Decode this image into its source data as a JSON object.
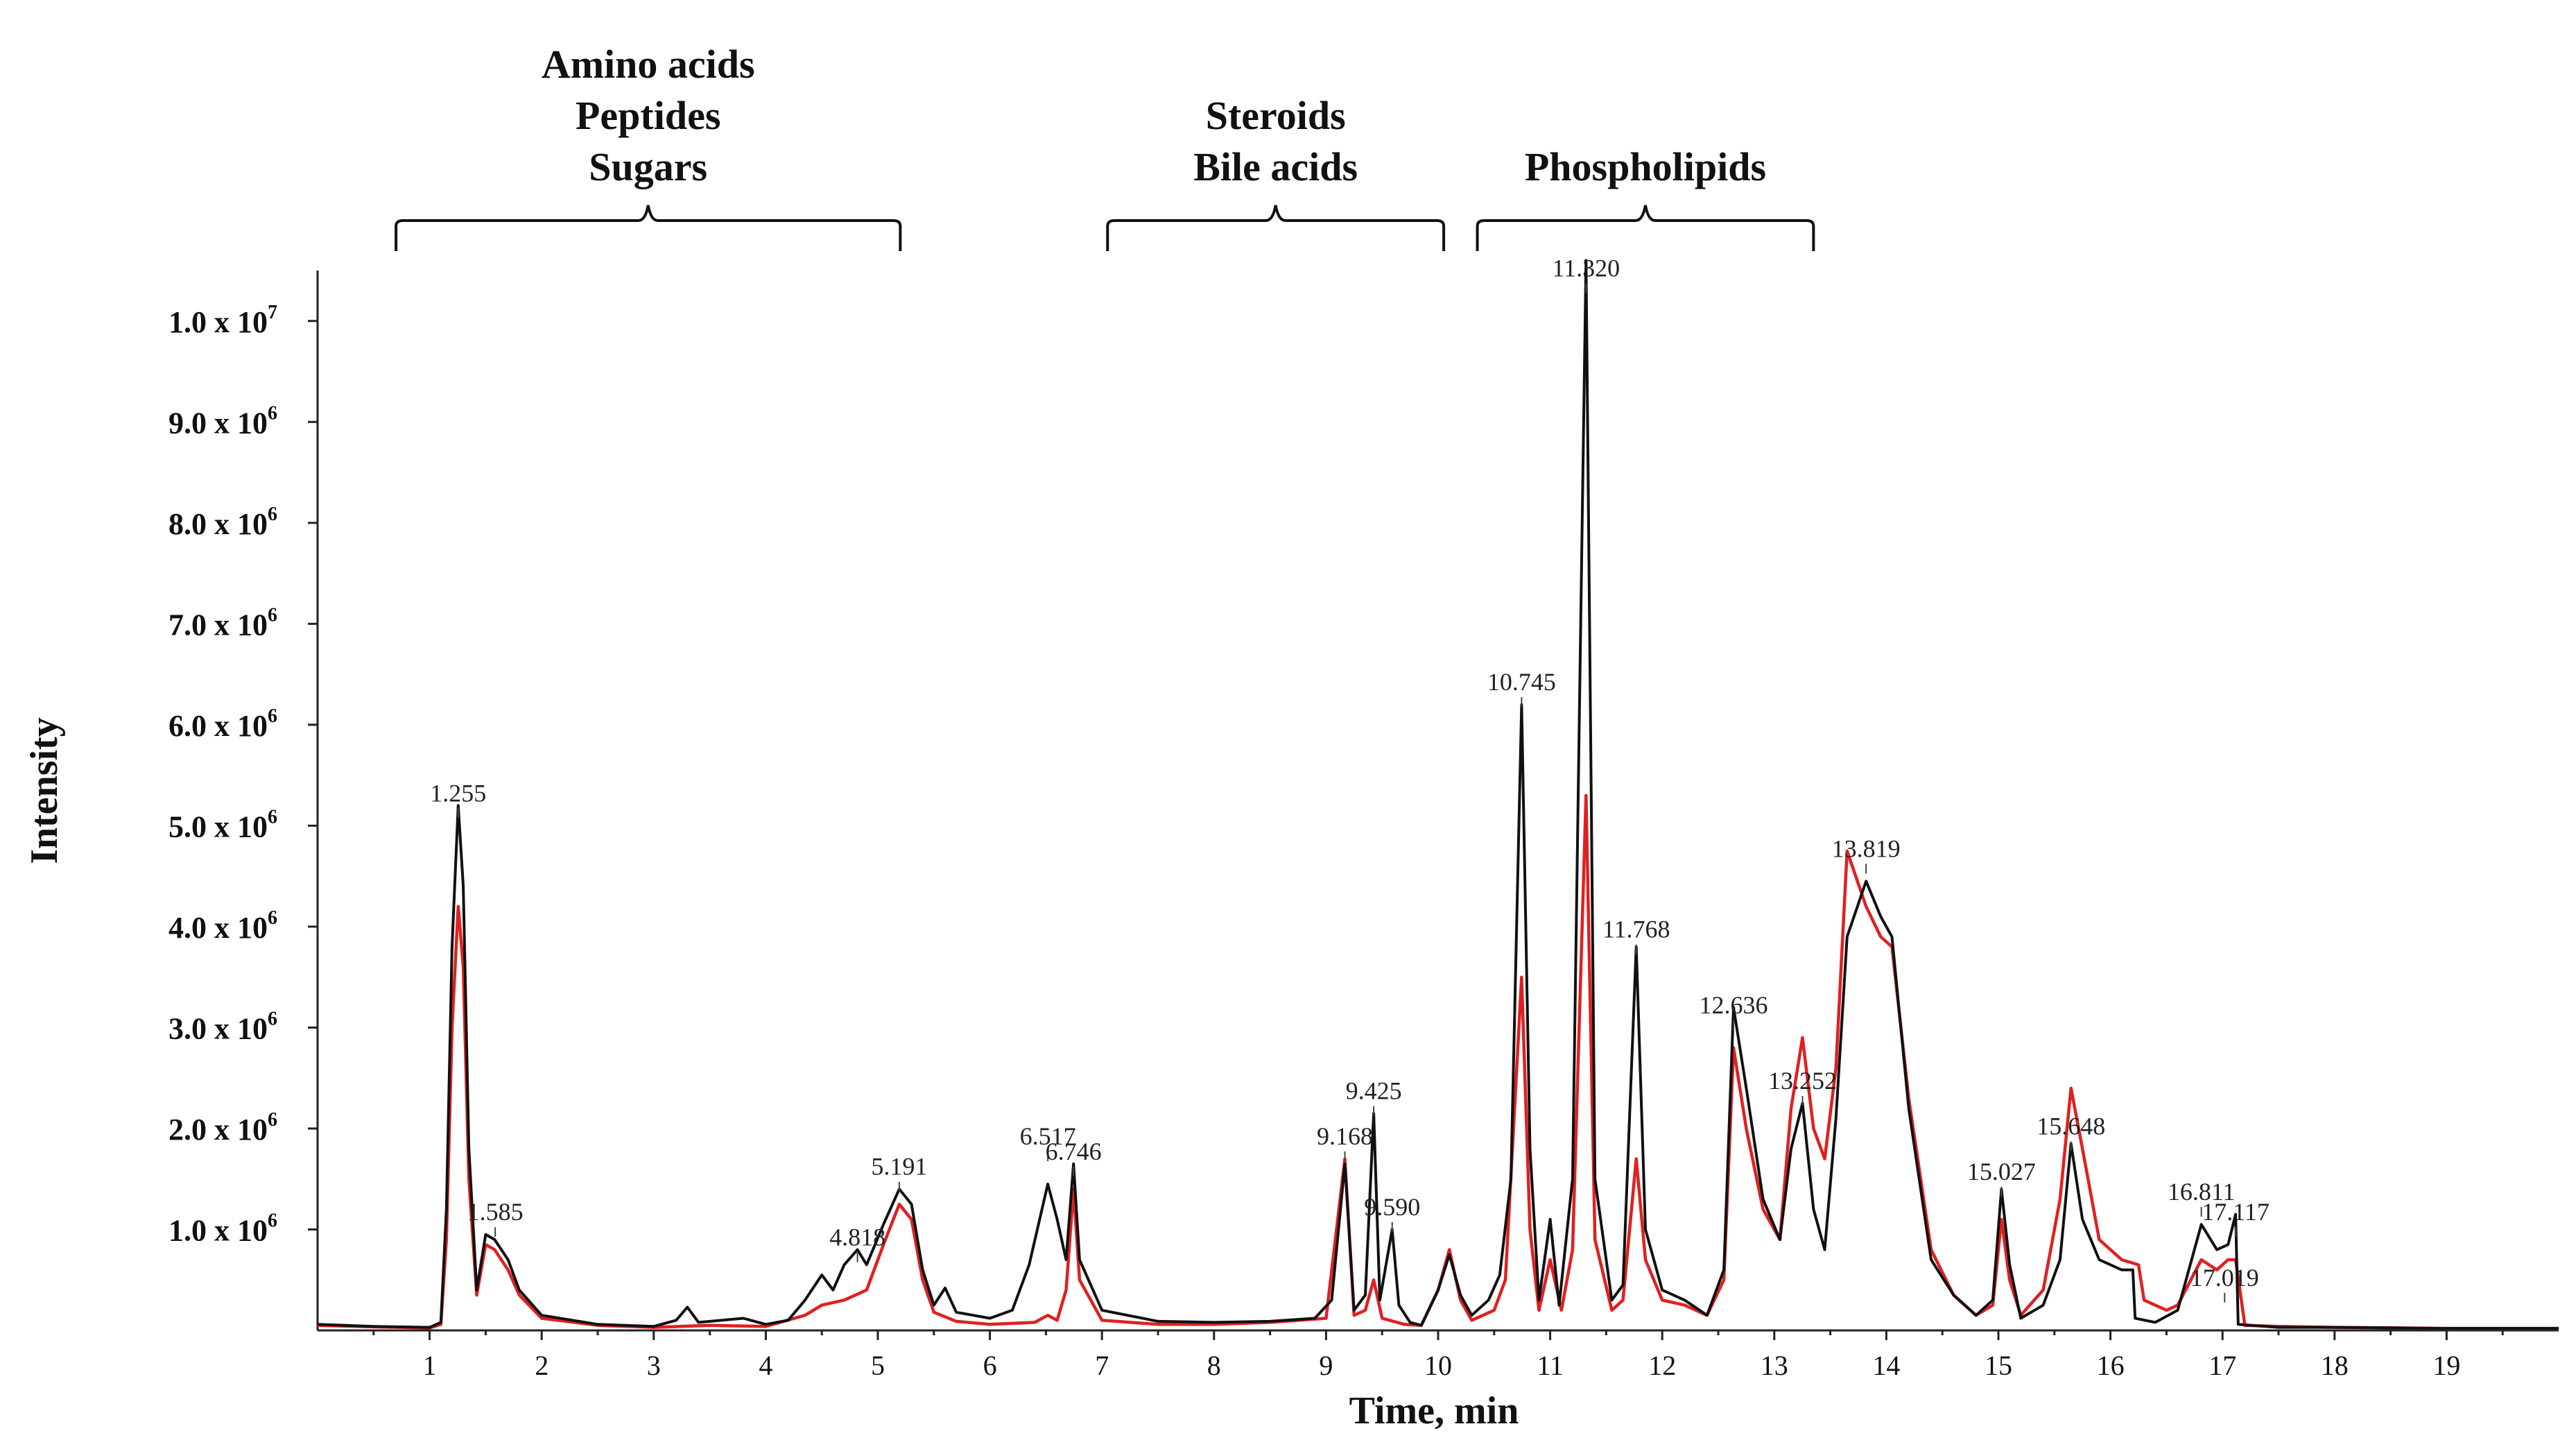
{
  "chart_data": {
    "type": "line",
    "title": "",
    "xlabel": "Time, min",
    "ylabel": "Intensity",
    "xlim": [
      0,
      20
    ],
    "ylim": [
      0,
      10500000
    ],
    "x_ticks": [
      1,
      2,
      3,
      4,
      5,
      6,
      7,
      8,
      9,
      10,
      11,
      12,
      13,
      14,
      15,
      16,
      17,
      18,
      19
    ],
    "y_ticks": [
      {
        "value": 1000000,
        "mantissa": "1.0",
        "exp": "6"
      },
      {
        "value": 2000000,
        "mantissa": "2.0",
        "exp": "6"
      },
      {
        "value": 3000000,
        "mantissa": "3.0",
        "exp": "6"
      },
      {
        "value": 4000000,
        "mantissa": "4.0",
        "exp": "6"
      },
      {
        "value": 5000000,
        "mantissa": "5.0",
        "exp": "6"
      },
      {
        "value": 6000000,
        "mantissa": "6.0",
        "exp": "6"
      },
      {
        "value": 7000000,
        "mantissa": "7.0",
        "exp": "6"
      },
      {
        "value": 8000000,
        "mantissa": "8.0",
        "exp": "6"
      },
      {
        "value": 9000000,
        "mantissa": "9.0",
        "exp": "6"
      },
      {
        "value": 10000000,
        "mantissa": "1.0",
        "exp": "7"
      }
    ],
    "groups": [
      {
        "labels": [
          "Amino acids",
          "Peptides",
          "Sugars"
        ],
        "range": [
          0.7,
          5.2
        ]
      },
      {
        "labels": [
          "Steroids",
          "Bile acids"
        ],
        "range": [
          7.05,
          10.05
        ]
      },
      {
        "labels": [
          "Phospholipids"
        ],
        "range": [
          10.35,
          13.35
        ]
      }
    ],
    "peak_labels": [
      {
        "text": "1.255",
        "x": 1.255,
        "y": 5200000
      },
      {
        "text": "1.585",
        "x": 1.585,
        "y": 1050000
      },
      {
        "text": "4.818",
        "x": 4.818,
        "y": 800000
      },
      {
        "text": "5.191",
        "x": 5.191,
        "y": 1500000
      },
      {
        "text": "6.517",
        "x": 6.517,
        "y": 1800000
      },
      {
        "text": "6.746",
        "x": 6.746,
        "y": 1650000
      },
      {
        "text": "9.168",
        "x": 9.168,
        "y": 1800000
      },
      {
        "text": "9.425",
        "x": 9.425,
        "y": 2250000
      },
      {
        "text": "9.590",
        "x": 9.59,
        "y": 1100000
      },
      {
        "text": "10.745",
        "x": 10.745,
        "y": 6300000
      },
      {
        "text": "11.320",
        "x": 11.32,
        "y": 10400000
      },
      {
        "text": "11.768",
        "x": 11.768,
        "y": 3850000
      },
      {
        "text": "12.636",
        "x": 12.636,
        "y": 3100000
      },
      {
        "text": "13.252",
        "x": 13.252,
        "y": 2350000
      },
      {
        "text": "13.819",
        "x": 13.819,
        "y": 4650000
      },
      {
        "text": "15.027",
        "x": 15.027,
        "y": 1450000
      },
      {
        "text": "15.648",
        "x": 15.648,
        "y": 1900000
      },
      {
        "text": "16.811",
        "x": 16.811,
        "y": 1250000
      },
      {
        "text": "17.117",
        "x": 17.117,
        "y": 1050000
      },
      {
        "text": "17.019",
        "x": 17.019,
        "y": 400000
      }
    ],
    "series": [
      {
        "name": "black trace",
        "color": "#111111",
        "points": [
          [
            0,
            60000
          ],
          [
            0.5,
            40000
          ],
          [
            1.0,
            30000
          ],
          [
            1.1,
            80000
          ],
          [
            1.15,
            1200000
          ],
          [
            1.2,
            3800000
          ],
          [
            1.255,
            5200000
          ],
          [
            1.3,
            4400000
          ],
          [
            1.35,
            1800000
          ],
          [
            1.42,
            400000
          ],
          [
            1.5,
            950000
          ],
          [
            1.58,
            900000
          ],
          [
            1.7,
            700000
          ],
          [
            1.8,
            400000
          ],
          [
            2.0,
            150000
          ],
          [
            2.5,
            60000
          ],
          [
            3.0,
            40000
          ],
          [
            3.2,
            100000
          ],
          [
            3.3,
            230000
          ],
          [
            3.4,
            80000
          ],
          [
            3.8,
            120000
          ],
          [
            4.0,
            60000
          ],
          [
            4.2,
            100000
          ],
          [
            4.35,
            300000
          ],
          [
            4.5,
            550000
          ],
          [
            4.6,
            400000
          ],
          [
            4.7,
            650000
          ],
          [
            4.818,
            800000
          ],
          [
            4.9,
            650000
          ],
          [
            5.05,
            1050000
          ],
          [
            5.191,
            1400000
          ],
          [
            5.3,
            1250000
          ],
          [
            5.4,
            600000
          ],
          [
            5.5,
            250000
          ],
          [
            5.6,
            420000
          ],
          [
            5.7,
            180000
          ],
          [
            6.0,
            120000
          ],
          [
            6.2,
            200000
          ],
          [
            6.35,
            650000
          ],
          [
            6.517,
            1450000
          ],
          [
            6.6,
            1100000
          ],
          [
            6.68,
            700000
          ],
          [
            6.746,
            1650000
          ],
          [
            6.8,
            700000
          ],
          [
            7.0,
            200000
          ],
          [
            7.5,
            90000
          ],
          [
            8.0,
            80000
          ],
          [
            8.5,
            90000
          ],
          [
            8.9,
            120000
          ],
          [
            9.05,
            300000
          ],
          [
            9.168,
            1650000
          ],
          [
            9.25,
            200000
          ],
          [
            9.35,
            350000
          ],
          [
            9.425,
            2150000
          ],
          [
            9.48,
            300000
          ],
          [
            9.59,
            1000000
          ],
          [
            9.65,
            250000
          ],
          [
            9.75,
            80000
          ],
          [
            9.85,
            50000
          ],
          [
            10.0,
            400000
          ],
          [
            10.1,
            750000
          ],
          [
            10.2,
            350000
          ],
          [
            10.3,
            150000
          ],
          [
            10.45,
            300000
          ],
          [
            10.55,
            550000
          ],
          [
            10.65,
            1500000
          ],
          [
            10.745,
            6200000
          ],
          [
            10.82,
            1800000
          ],
          [
            10.9,
            300000
          ],
          [
            11.0,
            1100000
          ],
          [
            11.08,
            250000
          ],
          [
            11.2,
            1500000
          ],
          [
            11.32,
            10600000
          ],
          [
            11.4,
            1500000
          ],
          [
            11.55,
            300000
          ],
          [
            11.65,
            450000
          ],
          [
            11.768,
            3800000
          ],
          [
            11.85,
            1000000
          ],
          [
            12.0,
            400000
          ],
          [
            12.2,
            300000
          ],
          [
            12.4,
            150000
          ],
          [
            12.55,
            600000
          ],
          [
            12.636,
            3200000
          ],
          [
            12.75,
            2400000
          ],
          [
            12.9,
            1300000
          ],
          [
            13.05,
            900000
          ],
          [
            13.15,
            1800000
          ],
          [
            13.252,
            2250000
          ],
          [
            13.35,
            1200000
          ],
          [
            13.45,
            800000
          ],
          [
            13.55,
            2100000
          ],
          [
            13.65,
            3900000
          ],
          [
            13.819,
            4450000
          ],
          [
            13.95,
            4100000
          ],
          [
            14.05,
            3900000
          ],
          [
            14.2,
            2200000
          ],
          [
            14.4,
            700000
          ],
          [
            14.6,
            350000
          ],
          [
            14.8,
            150000
          ],
          [
            14.95,
            300000
          ],
          [
            15.027,
            1400000
          ],
          [
            15.1,
            650000
          ],
          [
            15.2,
            120000
          ],
          [
            15.4,
            250000
          ],
          [
            15.55,
            700000
          ],
          [
            15.648,
            1850000
          ],
          [
            15.75,
            1100000
          ],
          [
            15.9,
            700000
          ],
          [
            16.1,
            600000
          ],
          [
            16.2,
            600000
          ],
          [
            16.22,
            120000
          ],
          [
            16.4,
            80000
          ],
          [
            16.6,
            200000
          ],
          [
            16.811,
            1050000
          ],
          [
            16.95,
            800000
          ],
          [
            17.05,
            850000
          ],
          [
            17.117,
            1150000
          ],
          [
            17.14,
            60000
          ],
          [
            17.5,
            30000
          ],
          [
            18.0,
            30000
          ],
          [
            19.0,
            20000
          ],
          [
            20.0,
            20000
          ]
        ]
      },
      {
        "name": "red trace",
        "color": "#e02020",
        "points": [
          [
            0,
            50000
          ],
          [
            0.5,
            35000
          ],
          [
            1.0,
            25000
          ],
          [
            1.1,
            60000
          ],
          [
            1.15,
            900000
          ],
          [
            1.2,
            3000000
          ],
          [
            1.255,
            4200000
          ],
          [
            1.3,
            3600000
          ],
          [
            1.35,
            1500000
          ],
          [
            1.42,
            350000
          ],
          [
            1.5,
            850000
          ],
          [
            1.58,
            800000
          ],
          [
            1.7,
            600000
          ],
          [
            1.8,
            350000
          ],
          [
            2.0,
            120000
          ],
          [
            2.5,
            50000
          ],
          [
            3.0,
            30000
          ],
          [
            3.5,
            50000
          ],
          [
            4.0,
            40000
          ],
          [
            4.35,
            150000
          ],
          [
            4.5,
            250000
          ],
          [
            4.7,
            300000
          ],
          [
            4.9,
            400000
          ],
          [
            5.05,
            850000
          ],
          [
            5.191,
            1250000
          ],
          [
            5.3,
            1100000
          ],
          [
            5.4,
            500000
          ],
          [
            5.5,
            180000
          ],
          [
            5.7,
            90000
          ],
          [
            6.0,
            60000
          ],
          [
            6.4,
            80000
          ],
          [
            6.517,
            150000
          ],
          [
            6.6,
            100000
          ],
          [
            6.68,
            400000
          ],
          [
            6.746,
            1400000
          ],
          [
            6.8,
            500000
          ],
          [
            7.0,
            100000
          ],
          [
            7.5,
            60000
          ],
          [
            8.0,
            60000
          ],
          [
            8.5,
            80000
          ],
          [
            9.0,
            120000
          ],
          [
            9.168,
            1700000
          ],
          [
            9.25,
            150000
          ],
          [
            9.35,
            200000
          ],
          [
            9.425,
            500000
          ],
          [
            9.5,
            120000
          ],
          [
            9.7,
            60000
          ],
          [
            9.85,
            50000
          ],
          [
            10.0,
            400000
          ],
          [
            10.1,
            800000
          ],
          [
            10.2,
            300000
          ],
          [
            10.3,
            100000
          ],
          [
            10.5,
            200000
          ],
          [
            10.6,
            500000
          ],
          [
            10.745,
            3500000
          ],
          [
            10.82,
            1000000
          ],
          [
            10.9,
            200000
          ],
          [
            11.0,
            700000
          ],
          [
            11.1,
            200000
          ],
          [
            11.2,
            800000
          ],
          [
            11.32,
            5300000
          ],
          [
            11.4,
            900000
          ],
          [
            11.55,
            200000
          ],
          [
            11.65,
            300000
          ],
          [
            11.768,
            1700000
          ],
          [
            11.85,
            700000
          ],
          [
            12.0,
            300000
          ],
          [
            12.2,
            250000
          ],
          [
            12.4,
            150000
          ],
          [
            12.55,
            500000
          ],
          [
            12.636,
            2800000
          ],
          [
            12.75,
            2000000
          ],
          [
            12.9,
            1200000
          ],
          [
            13.05,
            900000
          ],
          [
            13.15,
            2200000
          ],
          [
            13.252,
            2900000
          ],
          [
            13.35,
            2000000
          ],
          [
            13.45,
            1700000
          ],
          [
            13.55,
            2600000
          ],
          [
            13.65,
            4750000
          ],
          [
            13.819,
            4200000
          ],
          [
            13.95,
            3900000
          ],
          [
            14.05,
            3800000
          ],
          [
            14.2,
            2300000
          ],
          [
            14.4,
            800000
          ],
          [
            14.6,
            350000
          ],
          [
            14.8,
            150000
          ],
          [
            14.95,
            250000
          ],
          [
            15.027,
            1100000
          ],
          [
            15.1,
            500000
          ],
          [
            15.2,
            150000
          ],
          [
            15.4,
            400000
          ],
          [
            15.55,
            1300000
          ],
          [
            15.648,
            2400000
          ],
          [
            15.75,
            1800000
          ],
          [
            15.9,
            900000
          ],
          [
            16.1,
            700000
          ],
          [
            16.25,
            650000
          ],
          [
            16.3,
            300000
          ],
          [
            16.5,
            200000
          ],
          [
            16.6,
            250000
          ],
          [
            16.811,
            700000
          ],
          [
            16.95,
            600000
          ],
          [
            17.05,
            700000
          ],
          [
            17.117,
            700000
          ],
          [
            17.2,
            50000
          ],
          [
            17.5,
            40000
          ],
          [
            18.0,
            30000
          ],
          [
            19.0,
            20000
          ],
          [
            20.0,
            20000
          ]
        ]
      }
    ]
  }
}
